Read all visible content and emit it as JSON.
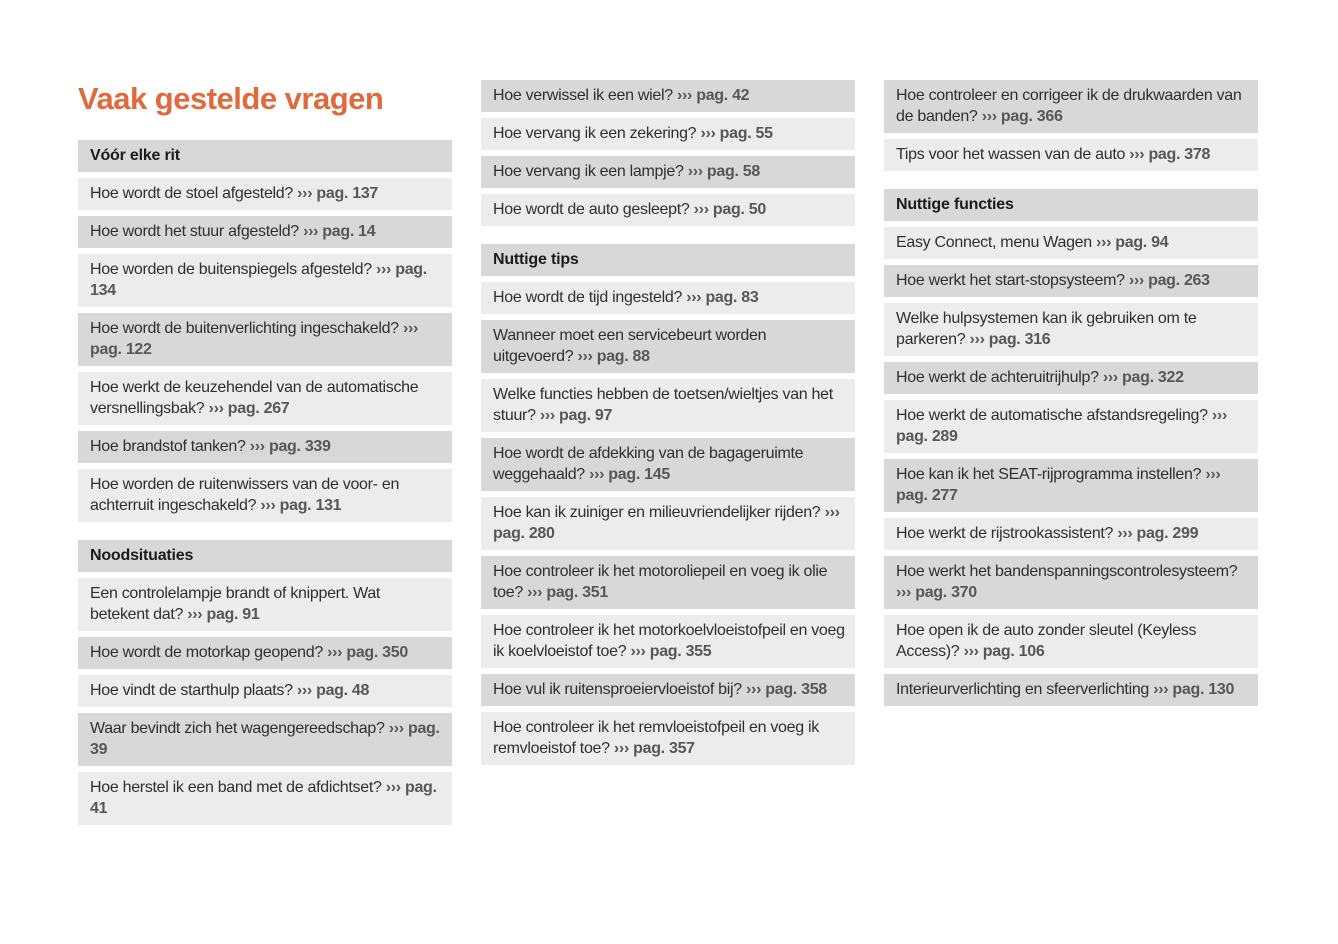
{
  "page_title": "Vaak gestelde vragen",
  "colors": {
    "accent_orange": "#e06a3c",
    "row_light": "#ececec",
    "row_dark": "#d8d8d8",
    "question_text": "#2f2f2f",
    "reference_text": "#575757"
  },
  "columns": [
    {
      "blocks": [
        {
          "type": "section",
          "title": "Vóór elke rit"
        },
        {
          "type": "item",
          "question": "Hoe wordt de stoel afgesteld?",
          "ref": "››› pag. 137"
        },
        {
          "type": "item",
          "question": "Hoe wordt het stuur afgesteld?",
          "ref": "››› pag. 14"
        },
        {
          "type": "item",
          "question": "Hoe worden de buitenspiegels afgesteld?",
          "ref": "››› pag. 134"
        },
        {
          "type": "item",
          "question": "Hoe wordt de buitenverlichting ingeschakeld?",
          "ref": "››› pag. 122"
        },
        {
          "type": "item",
          "question": "Hoe werkt de keuzehendel van de automatische versnellingsbak?",
          "ref": "››› pag. 267"
        },
        {
          "type": "item",
          "question": "Hoe brandstof tanken?",
          "ref": "››› pag. 339"
        },
        {
          "type": "item",
          "question": "Hoe worden de ruitenwissers van de voor- en achterruit ingeschakeld?",
          "ref": "››› pag. 131"
        },
        {
          "type": "section",
          "title": "Noodsituaties"
        },
        {
          "type": "item",
          "question": "Een controlelampje brandt of knippert. Wat betekent dat?",
          "ref": "››› pag. 91"
        },
        {
          "type": "item",
          "question": "Hoe wordt de motorkap geopend?",
          "ref": "››› pag. 350"
        },
        {
          "type": "item",
          "question": "Hoe vindt de starthulp plaats?",
          "ref": "››› pag. 48"
        },
        {
          "type": "item",
          "question": "Waar bevindt zich het wagengereedschap?",
          "ref": "››› pag. 39"
        },
        {
          "type": "item",
          "question": "Hoe herstel ik een band met de afdichtset?",
          "ref": "››› pag. 41"
        }
      ]
    },
    {
      "blocks": [
        {
          "type": "item",
          "question": "Hoe verwissel ik een wiel?",
          "ref": "››› pag. 42"
        },
        {
          "type": "item",
          "question": "Hoe vervang ik een zekering?",
          "ref": "››› pag. 55"
        },
        {
          "type": "item",
          "question": "Hoe vervang ik een lampje?",
          "ref": "››› pag. 58"
        },
        {
          "type": "item",
          "question": "Hoe wordt de auto gesleept?",
          "ref": "››› pag. 50"
        },
        {
          "type": "section",
          "title": "Nuttige tips"
        },
        {
          "type": "item",
          "question": "Hoe wordt de tijd ingesteld?",
          "ref": "››› pag. 83"
        },
        {
          "type": "item",
          "question": "Wanneer moet een servicebeurt worden uitgevoerd?",
          "ref": "››› pag. 88"
        },
        {
          "type": "item",
          "question": "Welke functies hebben de toetsen/wieltjes van het stuur?",
          "ref": "››› pag. 97"
        },
        {
          "type": "item",
          "question": "Hoe wordt de afdekking van de bagageruimte weggehaald?",
          "ref": "››› pag. 145"
        },
        {
          "type": "item",
          "question": "Hoe kan ik zuiniger en milieuvriendelijker rijden?",
          "ref": "››› pag. 280"
        },
        {
          "type": "item",
          "question": "Hoe controleer ik het motoroliepeil en voeg ik olie toe?",
          "ref": "››› pag. 351"
        },
        {
          "type": "item",
          "question": "Hoe controleer ik het motorkoelvloeistofpeil en voeg ik koelvloeistof toe?",
          "ref": "››› pag. 355"
        },
        {
          "type": "item",
          "question": "Hoe vul ik ruitensproeiervloeistof bij?",
          "ref": "››› pag. 358"
        },
        {
          "type": "item",
          "question": "Hoe controleer ik het remvloeistofpeil en voeg ik remvloeistof toe?",
          "ref": "››› pag. 357"
        }
      ]
    },
    {
      "blocks": [
        {
          "type": "item",
          "question": "Hoe controleer en corrigeer ik de drukwaarden van de banden?",
          "ref": "››› pag. 366"
        },
        {
          "type": "item",
          "question": "Tips voor het wassen van de auto",
          "ref": "››› pag. 378"
        },
        {
          "type": "section",
          "title": "Nuttige functies"
        },
        {
          "type": "item",
          "question": "Easy Connect, menu Wagen",
          "ref": "››› pag. 94"
        },
        {
          "type": "item",
          "question": "Hoe werkt het start-stopsysteem?",
          "ref": "››› pag. 263"
        },
        {
          "type": "item",
          "question": "Welke hulpsystemen kan ik gebruiken om te parkeren?",
          "ref": "››› pag. 316"
        },
        {
          "type": "item",
          "question": "Hoe werkt de achteruitrijhulp?",
          "ref": "››› pag. 322"
        },
        {
          "type": "item",
          "question": "Hoe werkt de automatische afstandsregeling?",
          "ref": "››› pag. 289"
        },
        {
          "type": "item",
          "question": "Hoe kan ik het SEAT-rijprogramma instellen?",
          "ref": "››› pag. 277"
        },
        {
          "type": "item",
          "question": "Hoe werkt de rijstrookassistent?",
          "ref": "››› pag. 299"
        },
        {
          "type": "item",
          "question": "Hoe werkt het bandenspanningscontrolesysteem?",
          "ref": "››› pag. 370"
        },
        {
          "type": "item",
          "question": "Hoe open ik de auto zonder sleutel (Keyless Access)?",
          "ref": "››› pag. 106"
        },
        {
          "type": "item",
          "question": "Interieurverlichting en sfeerverlichting",
          "ref": "››› pag. 130"
        }
      ]
    }
  ]
}
